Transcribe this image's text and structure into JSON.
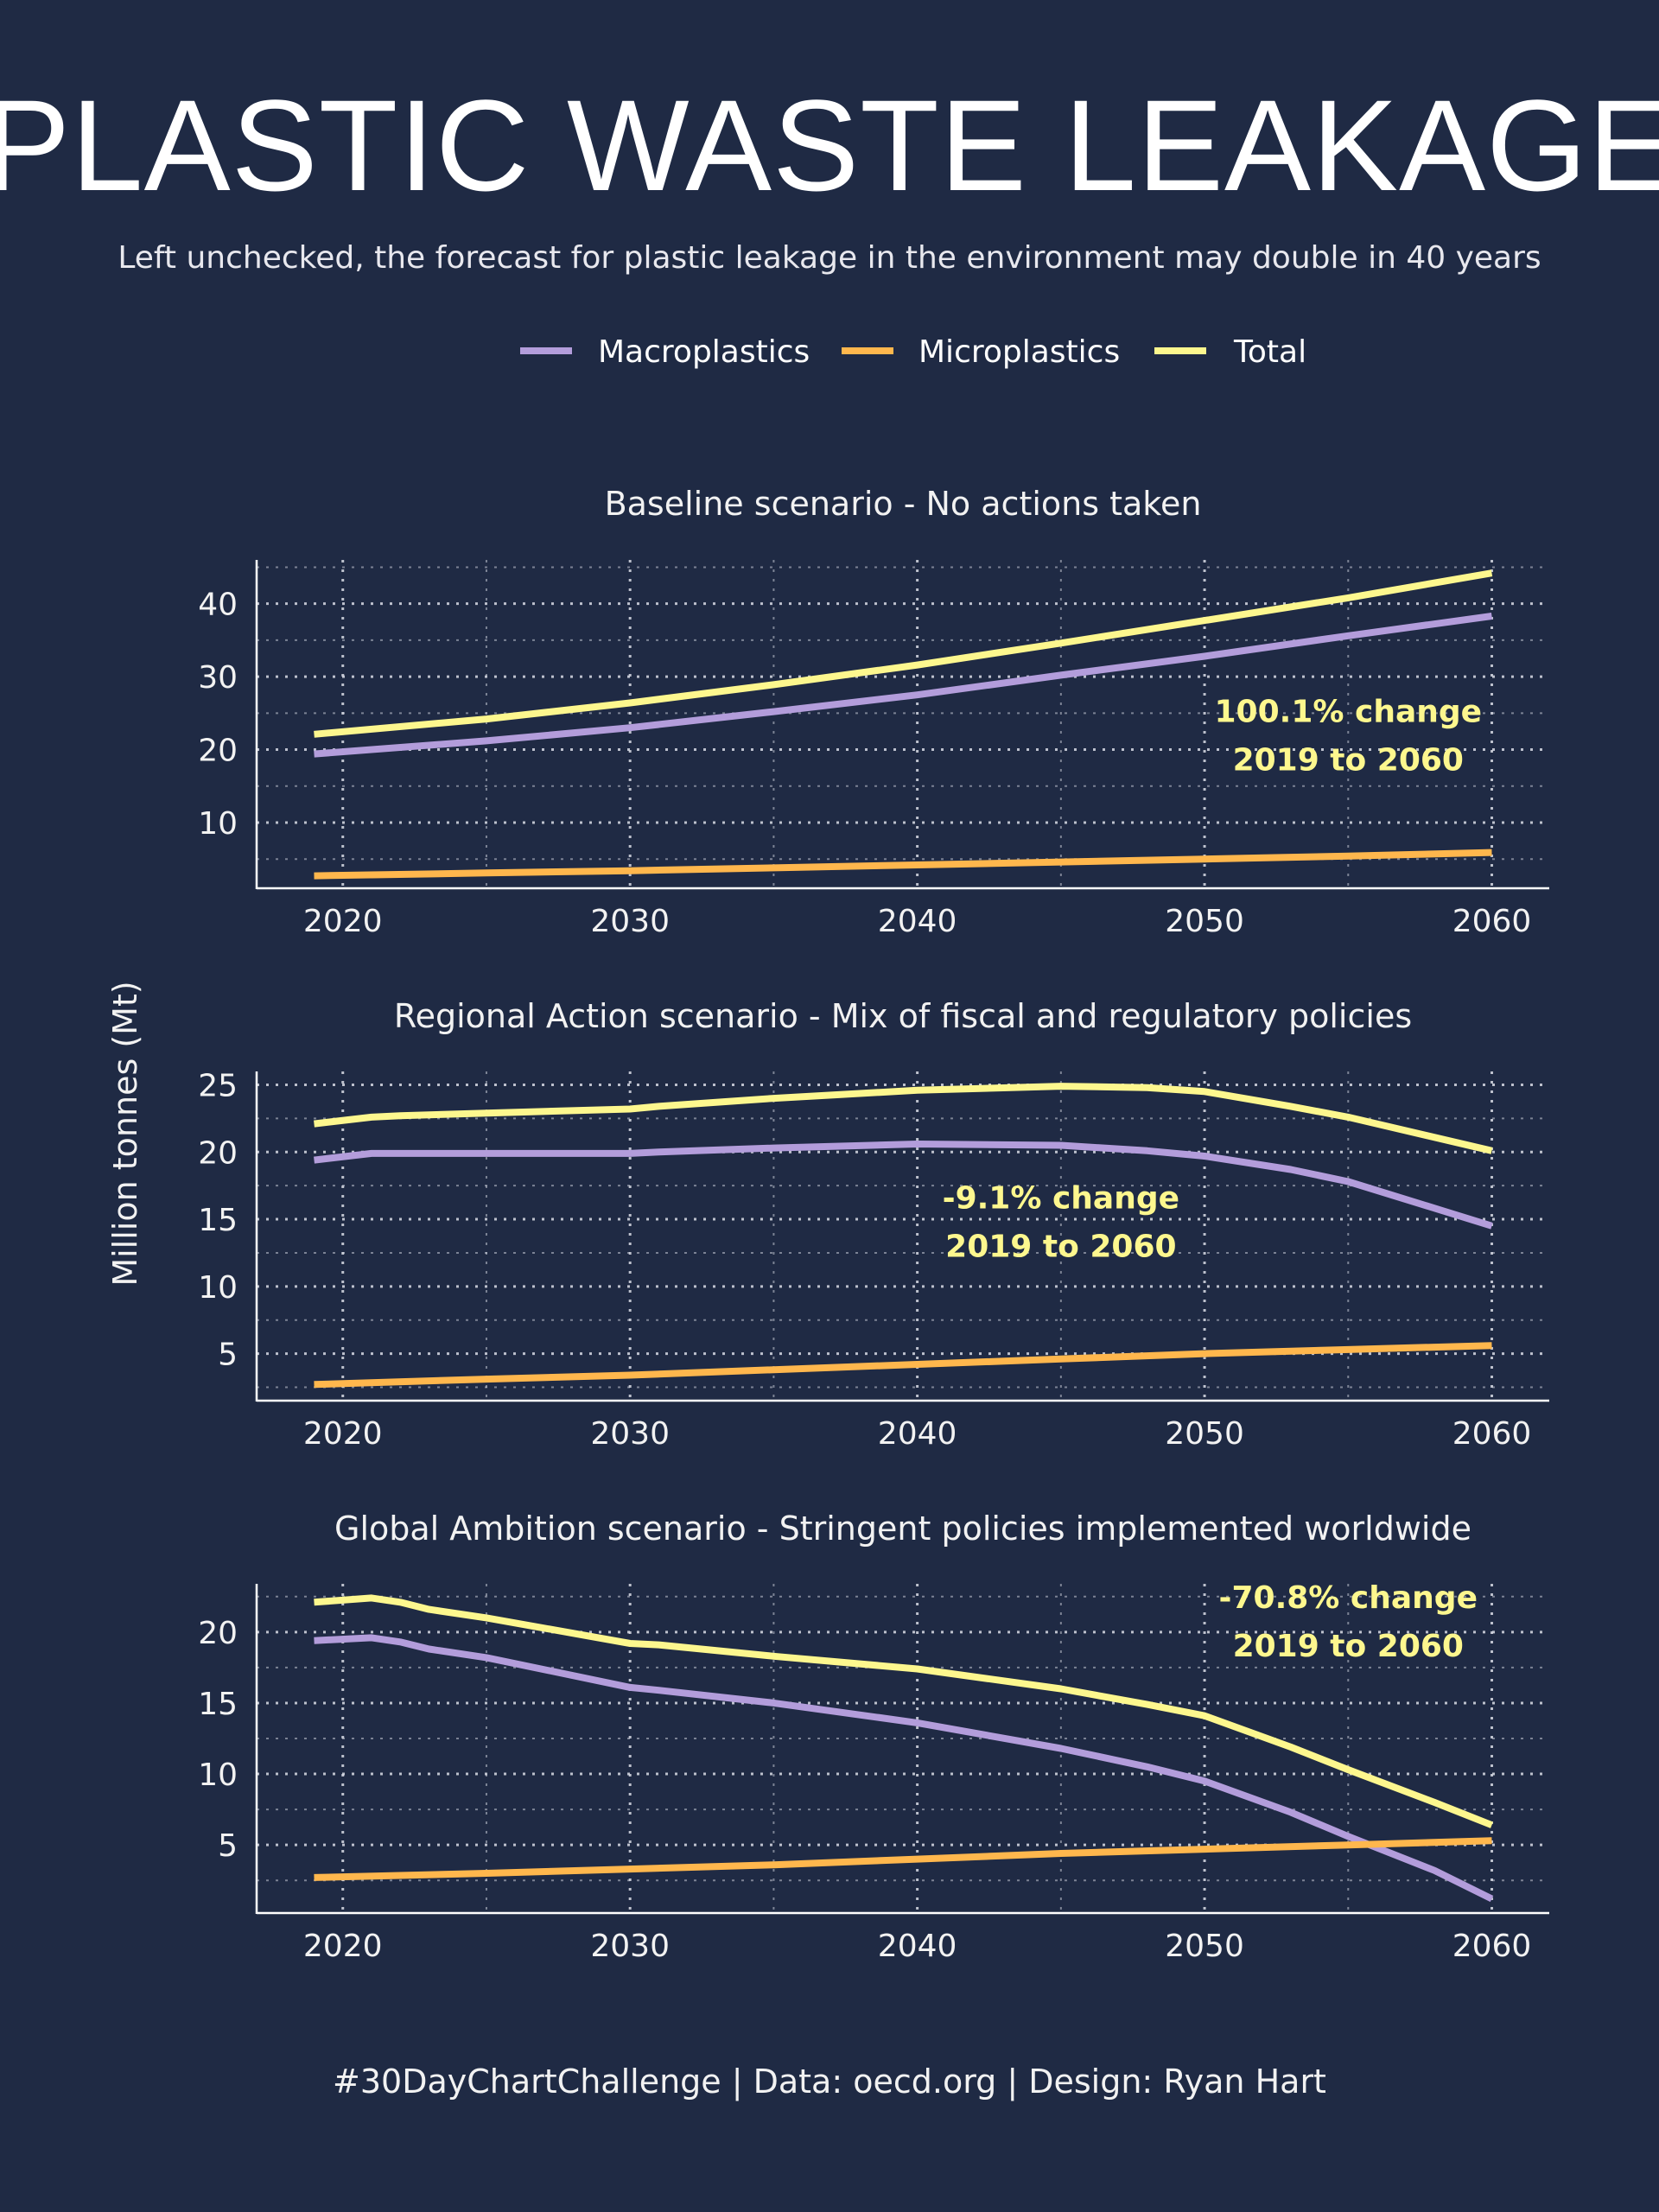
{
  "title": "PLASTIC WASTE LEAKAGE",
  "subtitle": "Left unchecked, the forecast for plastic leakage in the environment may double in 40 years",
  "footer": "#30DayChartChallenge | Data: oecd.org | Design: Ryan Hart",
  "ylabel": "Million tonnes (Mt)",
  "colors": {
    "background": "#1f2a44",
    "macroplastics": "#b39ddb",
    "microplastics": "#ffb74d",
    "total": "#fdf78e"
  },
  "chart_data": [
    {
      "type": "line",
      "title": "Baseline scenario - No actions taken",
      "legend": [
        "Macroplastics",
        "Microplastics",
        "Total"
      ],
      "legend_position": "top",
      "xlim": [
        2017,
        2062
      ],
      "ylim": [
        1,
        46
      ],
      "xticks": [
        2020,
        2030,
        2040,
        2050,
        2060
      ],
      "yticks": [
        10,
        20,
        30,
        40
      ],
      "grid": true,
      "annotation": {
        "line1": "100.1% change",
        "line2": "2019 to 2060",
        "x": 2055,
        "y": 20.5
      },
      "series": [
        {
          "name": "Macroplastics",
          "color": "#b39ddb",
          "x": [
            2019,
            2025,
            2030,
            2035,
            2040,
            2045,
            2050,
            2055,
            2060
          ],
          "y": [
            19.4,
            21.2,
            23.0,
            25.2,
            27.5,
            30.2,
            32.8,
            35.6,
            38.3
          ]
        },
        {
          "name": "Microplastics",
          "color": "#ffb74d",
          "x": [
            2019,
            2025,
            2030,
            2035,
            2040,
            2045,
            2050,
            2055,
            2060
          ],
          "y": [
            2.7,
            3.1,
            3.4,
            3.8,
            4.2,
            4.6,
            5.0,
            5.4,
            5.9
          ]
        },
        {
          "name": "Total",
          "color": "#fdf78e",
          "x": [
            2019,
            2025,
            2030,
            2035,
            2040,
            2045,
            2050,
            2055,
            2060
          ],
          "y": [
            22.1,
            24.2,
            26.4,
            28.9,
            31.6,
            34.6,
            37.7,
            40.8,
            44.2
          ]
        }
      ]
    },
    {
      "type": "line",
      "title": "Regional Action scenario - Mix of fiscal and regulatory policies",
      "xlim": [
        2017,
        2062
      ],
      "ylim": [
        1.5,
        26
      ],
      "xticks": [
        2020,
        2030,
        2040,
        2050,
        2060
      ],
      "yticks": [
        5,
        10,
        15,
        20,
        25
      ],
      "grid": true,
      "annotation": {
        "line1": "-9.1% change",
        "line2": "2019 to 2060",
        "x": 2045,
        "y": 14
      },
      "series": [
        {
          "name": "Macroplastics",
          "color": "#b39ddb",
          "x": [
            2019,
            2021,
            2022,
            2025,
            2030,
            2031,
            2035,
            2040,
            2045,
            2048,
            2050,
            2053,
            2055,
            2060
          ],
          "y": [
            19.4,
            19.9,
            19.9,
            19.9,
            19.9,
            20.0,
            20.3,
            20.6,
            20.5,
            20.1,
            19.7,
            18.7,
            17.8,
            14.5
          ]
        },
        {
          "name": "Microplastics",
          "color": "#ffb74d",
          "x": [
            2019,
            2025,
            2030,
            2035,
            2040,
            2045,
            2050,
            2055,
            2060
          ],
          "y": [
            2.7,
            3.1,
            3.4,
            3.8,
            4.2,
            4.6,
            5.0,
            5.3,
            5.6
          ]
        },
        {
          "name": "Total",
          "color": "#fdf78e",
          "x": [
            2019,
            2021,
            2022,
            2025,
            2030,
            2031,
            2035,
            2040,
            2045,
            2048,
            2050,
            2053,
            2055,
            2060
          ],
          "y": [
            22.1,
            22.6,
            22.7,
            22.9,
            23.2,
            23.4,
            24.0,
            24.6,
            24.9,
            24.8,
            24.5,
            23.4,
            22.6,
            20.1
          ]
        }
      ]
    },
    {
      "type": "line",
      "title": "Global Ambition scenario - Stringent policies implemented worldwide",
      "xlim": [
        2017,
        2062
      ],
      "ylim": [
        0.2,
        23.4
      ],
      "xticks": [
        2020,
        2030,
        2040,
        2050,
        2060
      ],
      "yticks": [
        5,
        10,
        15,
        20
      ],
      "grid": true,
      "annotation": {
        "line1": "-70.8% change",
        "line2": "2019 to 2060",
        "x": 2055,
        "y": 20
      },
      "series": [
        {
          "name": "Macroplastics",
          "color": "#b39ddb",
          "x": [
            2019,
            2021,
            2022,
            2023,
            2025,
            2030,
            2031,
            2035,
            2040,
            2045,
            2048,
            2050,
            2053,
            2055,
            2058,
            2060
          ],
          "y": [
            19.4,
            19.6,
            19.3,
            18.8,
            18.2,
            16.1,
            15.9,
            15.0,
            13.6,
            11.8,
            10.5,
            9.5,
            7.3,
            5.6,
            3.2,
            1.2
          ]
        },
        {
          "name": "Microplastics",
          "color": "#ffb74d",
          "x": [
            2019,
            2025,
            2030,
            2035,
            2040,
            2045,
            2050,
            2055,
            2060
          ],
          "y": [
            2.7,
            3.0,
            3.3,
            3.6,
            4.0,
            4.4,
            4.7,
            5.0,
            5.3
          ]
        },
        {
          "name": "Total",
          "color": "#fdf78e",
          "x": [
            2019,
            2021,
            2022,
            2023,
            2025,
            2030,
            2031,
            2035,
            2040,
            2045,
            2048,
            2050,
            2053,
            2055,
            2058,
            2060
          ],
          "y": [
            22.1,
            22.4,
            22.1,
            21.6,
            21.0,
            19.2,
            19.1,
            18.3,
            17.4,
            16.0,
            14.9,
            14.1,
            11.9,
            10.3,
            8.0,
            6.4
          ]
        }
      ]
    }
  ]
}
